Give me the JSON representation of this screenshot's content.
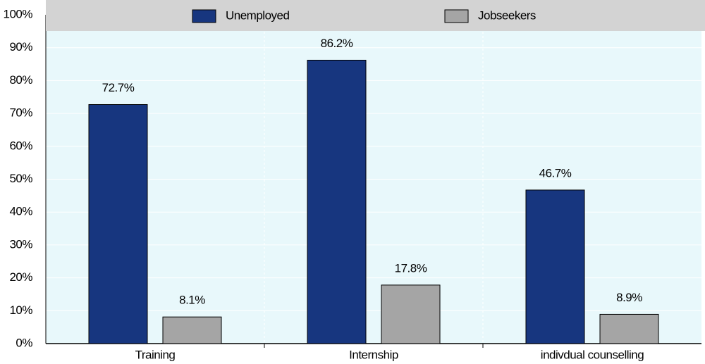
{
  "chart_data": {
    "type": "bar",
    "categories": [
      "Training",
      "Internship",
      "indivdual counselling"
    ],
    "series": [
      {
        "name": "Unemployed",
        "color": "#17367f",
        "values": [
          72.7,
          86.2,
          46.7
        ],
        "value_labels": [
          "72.7%",
          "86.2%",
          "46.7%"
        ]
      },
      {
        "name": "Jobseekers",
        "color": "#a5a5a5",
        "values": [
          8.1,
          17.8,
          8.9
        ],
        "value_labels": [
          "8.1%",
          "17.8%",
          "8.9%"
        ]
      }
    ],
    "ylim": [
      0,
      100
    ],
    "yticks": [
      {
        "value": 0,
        "label": "0%"
      },
      {
        "value": 10,
        "label": "10%"
      },
      {
        "value": 20,
        "label": "20%"
      },
      {
        "value": 30,
        "label": "30%"
      },
      {
        "value": 40,
        "label": "40%"
      },
      {
        "value": 50,
        "label": "50%"
      },
      {
        "value": 60,
        "label": "60%"
      },
      {
        "value": 70,
        "label": "70%"
      },
      {
        "value": 80,
        "label": "80%"
      },
      {
        "value": 90,
        "label": "90%"
      },
      {
        "value": 100,
        "label": "100%"
      }
    ],
    "grid": true
  }
}
